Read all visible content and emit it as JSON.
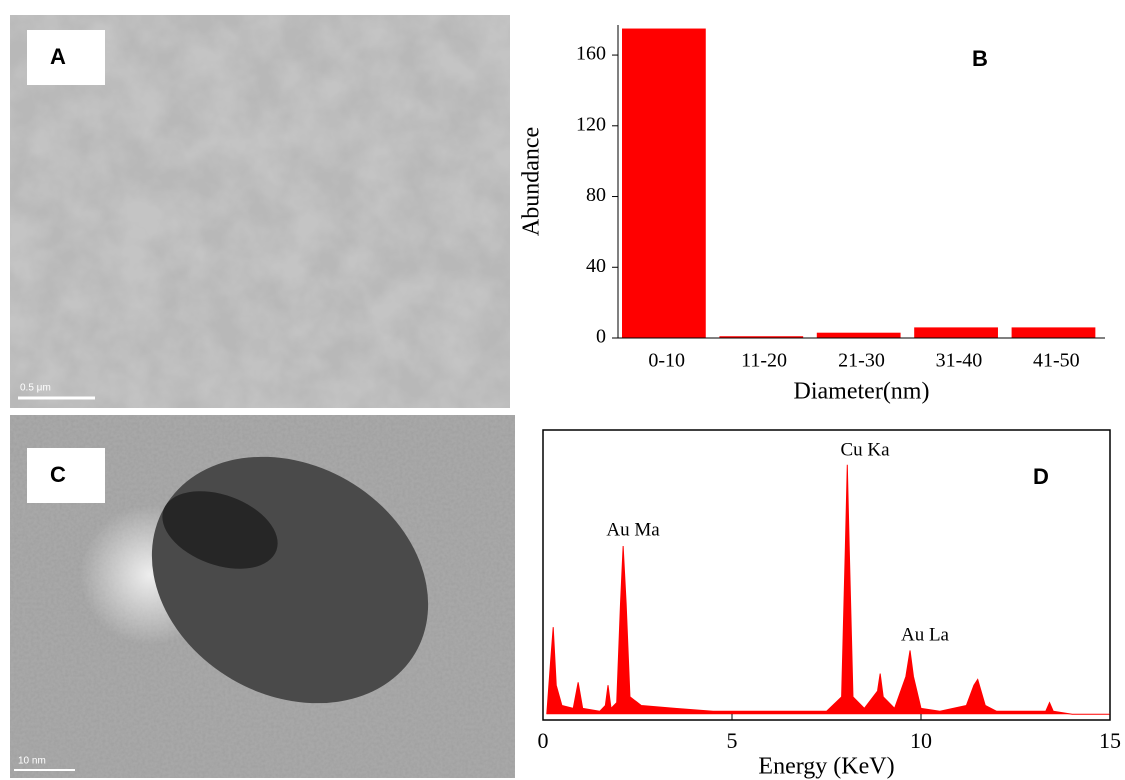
{
  "images": [
    {
      "label": "A",
      "scale": "0.5 μm"
    },
    {
      "label": "C",
      "scale": "10 nm"
    }
  ],
  "chart_data": [
    {
      "type": "bar",
      "label": "B",
      "categories": [
        "0-10",
        "11-20",
        "21-30",
        "31-40",
        "41-50"
      ],
      "values": [
        175,
        1,
        3,
        6,
        6
      ],
      "color": "#ff0000",
      "ylim": [
        0,
        177
      ],
      "yticks": [
        0,
        40,
        80,
        120,
        160
      ],
      "x_label": "Diameter(nm)",
      "y_label": "Abundance"
    },
    {
      "type": "line",
      "label": "D",
      "x": [
        0.1,
        0.2,
        0.27,
        0.35,
        0.5,
        0.8,
        0.93,
        1.05,
        1.5,
        1.65,
        1.72,
        1.8,
        1.95,
        2.05,
        2.12,
        2.2,
        2.3,
        2.6,
        3.5,
        4.5,
        5.5,
        6.5,
        7.5,
        7.9,
        8.0,
        8.05,
        8.1,
        8.2,
        8.5,
        8.85,
        8.92,
        9.0,
        9.3,
        9.6,
        9.71,
        9.8,
        10.0,
        10.5,
        11.2,
        11.4,
        11.5,
        11.7,
        12.0,
        12.6,
        13.3,
        13.4,
        13.5,
        14.0,
        15
      ],
      "values": [
        2,
        20,
        32,
        12,
        5,
        4,
        13,
        4,
        3,
        5,
        12,
        4,
        6,
        40,
        60,
        40,
        8,
        5,
        4,
        3,
        3,
        3,
        3,
        8,
        60,
        88,
        60,
        8,
        4,
        10,
        16,
        8,
        4,
        15,
        24,
        15,
        4,
        3,
        5,
        12,
        14,
        5,
        3,
        3,
        3,
        6,
        3,
        2,
        2
      ],
      "color": "#ff0000",
      "xlim": [
        0,
        15
      ],
      "xticks": [
        0,
        5,
        10,
        15
      ],
      "ylim": [
        0,
        100
      ],
      "x_label": "Energy (KeV)",
      "annotations": [
        "Au Ma",
        "Cu Ka",
        "Au La"
      ]
    }
  ]
}
